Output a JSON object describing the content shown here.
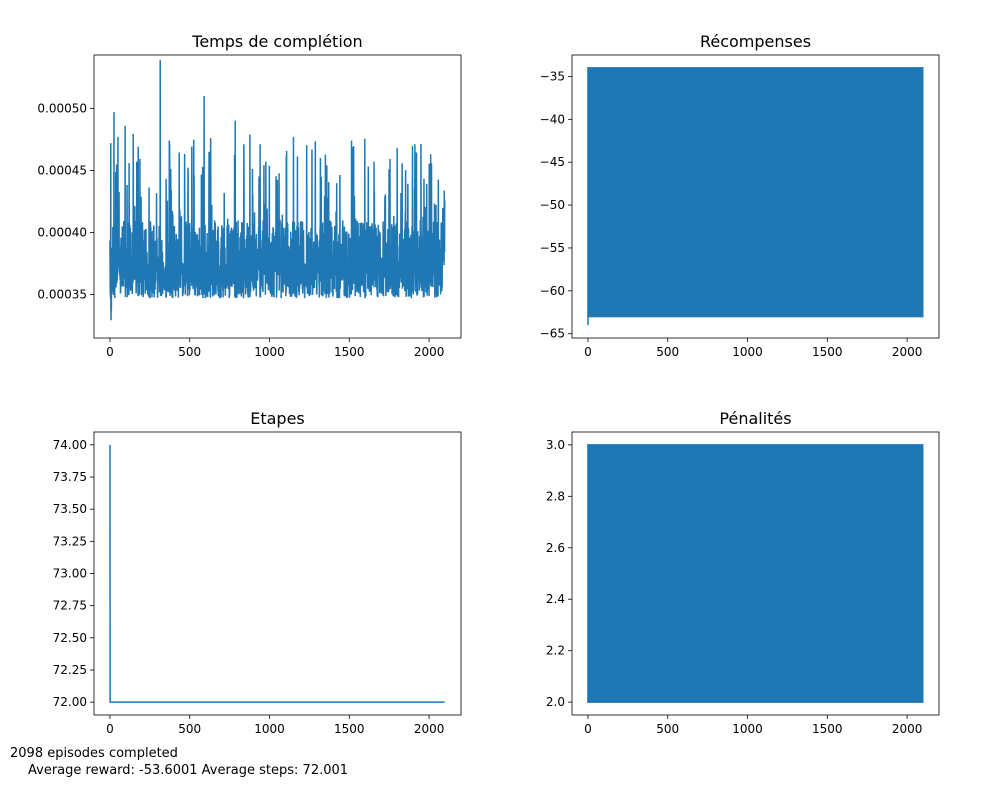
{
  "footer": {
    "line1": "2098 episodes completed",
    "line2": "Average reward: -53.6001 Average steps: 72.001"
  },
  "colors": {
    "series": "#1f77b4",
    "axis": "#000000",
    "background": "#ffffff"
  },
  "chart_data": [
    {
      "type": "line",
      "title": "Temps de complétion",
      "xlim": [
        -100,
        2200
      ],
      "ylim": [
        0.000315,
        0.000543
      ],
      "xticks": [
        0,
        500,
        1000,
        1500,
        2000
      ],
      "xtick_labels": [
        "0",
        "500",
        "1000",
        "1500",
        "2000"
      ],
      "yticks": [
        0.00035,
        0.0004,
        0.00045,
        0.0005
      ],
      "ytick_labels": [
        "0.00035",
        "0.00040",
        "0.00045",
        "0.00050"
      ],
      "x_range": [
        0,
        2098
      ],
      "baseline_band": [
        0.00035,
        0.00038
      ],
      "y_min": 0.000323,
      "y_max": 0.000539,
      "notable_peaks": [
        {
          "x": 5,
          "y": 0.000472
        },
        {
          "x": 25,
          "y": 0.000497
        },
        {
          "x": 50,
          "y": 0.000477
        },
        {
          "x": 95,
          "y": 0.000486
        },
        {
          "x": 315,
          "y": 0.000539
        },
        {
          "x": 590,
          "y": 0.00051
        },
        {
          "x": 785,
          "y": 0.00049
        },
        {
          "x": 1150,
          "y": 0.000477
        },
        {
          "x": 1800,
          "y": 0.000468
        },
        {
          "x": 2010,
          "y": 0.000463
        }
      ],
      "grid": false
    },
    {
      "type": "line",
      "title": "Récompenses",
      "xlim": [
        -100,
        2200
      ],
      "ylim": [
        -65.5,
        -32.5
      ],
      "xticks": [
        0,
        500,
        1000,
        1500,
        2000
      ],
      "xtick_labels": [
        "0",
        "500",
        "1000",
        "1500",
        "2000"
      ],
      "yticks": [
        -65,
        -60,
        -55,
        -50,
        -45,
        -40,
        -35
      ],
      "ytick_labels": [
        "−65",
        "−60",
        "−55",
        "−50",
        "−45",
        "−40",
        "−35"
      ],
      "x_range": [
        0,
        2098
      ],
      "oscillation_range": [
        -63,
        -34
      ],
      "y_min": -64,
      "grid": false
    },
    {
      "type": "line",
      "title": "Etapes",
      "xlim": [
        -100,
        2200
      ],
      "ylim": [
        71.9,
        74.1
      ],
      "xticks": [
        0,
        500,
        1000,
        1500,
        2000
      ],
      "xtick_labels": [
        "0",
        "500",
        "1000",
        "1500",
        "2000"
      ],
      "yticks": [
        72.0,
        72.25,
        72.5,
        72.75,
        73.0,
        73.25,
        73.5,
        73.75,
        74.0
      ],
      "ytick_labels": [
        "72.00",
        "72.25",
        "72.50",
        "72.75",
        "73.00",
        "73.25",
        "73.50",
        "73.75",
        "74.00"
      ],
      "x": [
        0,
        1,
        2098
      ],
      "y": [
        74,
        72,
        72
      ],
      "grid": false
    },
    {
      "type": "line",
      "title": "Pénalités",
      "xlim": [
        -100,
        2200
      ],
      "ylim": [
        1.95,
        3.05
      ],
      "xticks": [
        0,
        500,
        1000,
        1500,
        2000
      ],
      "xtick_labels": [
        "0",
        "500",
        "1000",
        "1500",
        "2000"
      ],
      "yticks": [
        2.0,
        2.2,
        2.4,
        2.6,
        2.8,
        3.0
      ],
      "ytick_labels": [
        "2.0",
        "2.2",
        "2.4",
        "2.6",
        "2.8",
        "3.0"
      ],
      "x_range": [
        0,
        2098
      ],
      "oscillation_range": [
        2,
        3
      ],
      "grid": false
    }
  ]
}
